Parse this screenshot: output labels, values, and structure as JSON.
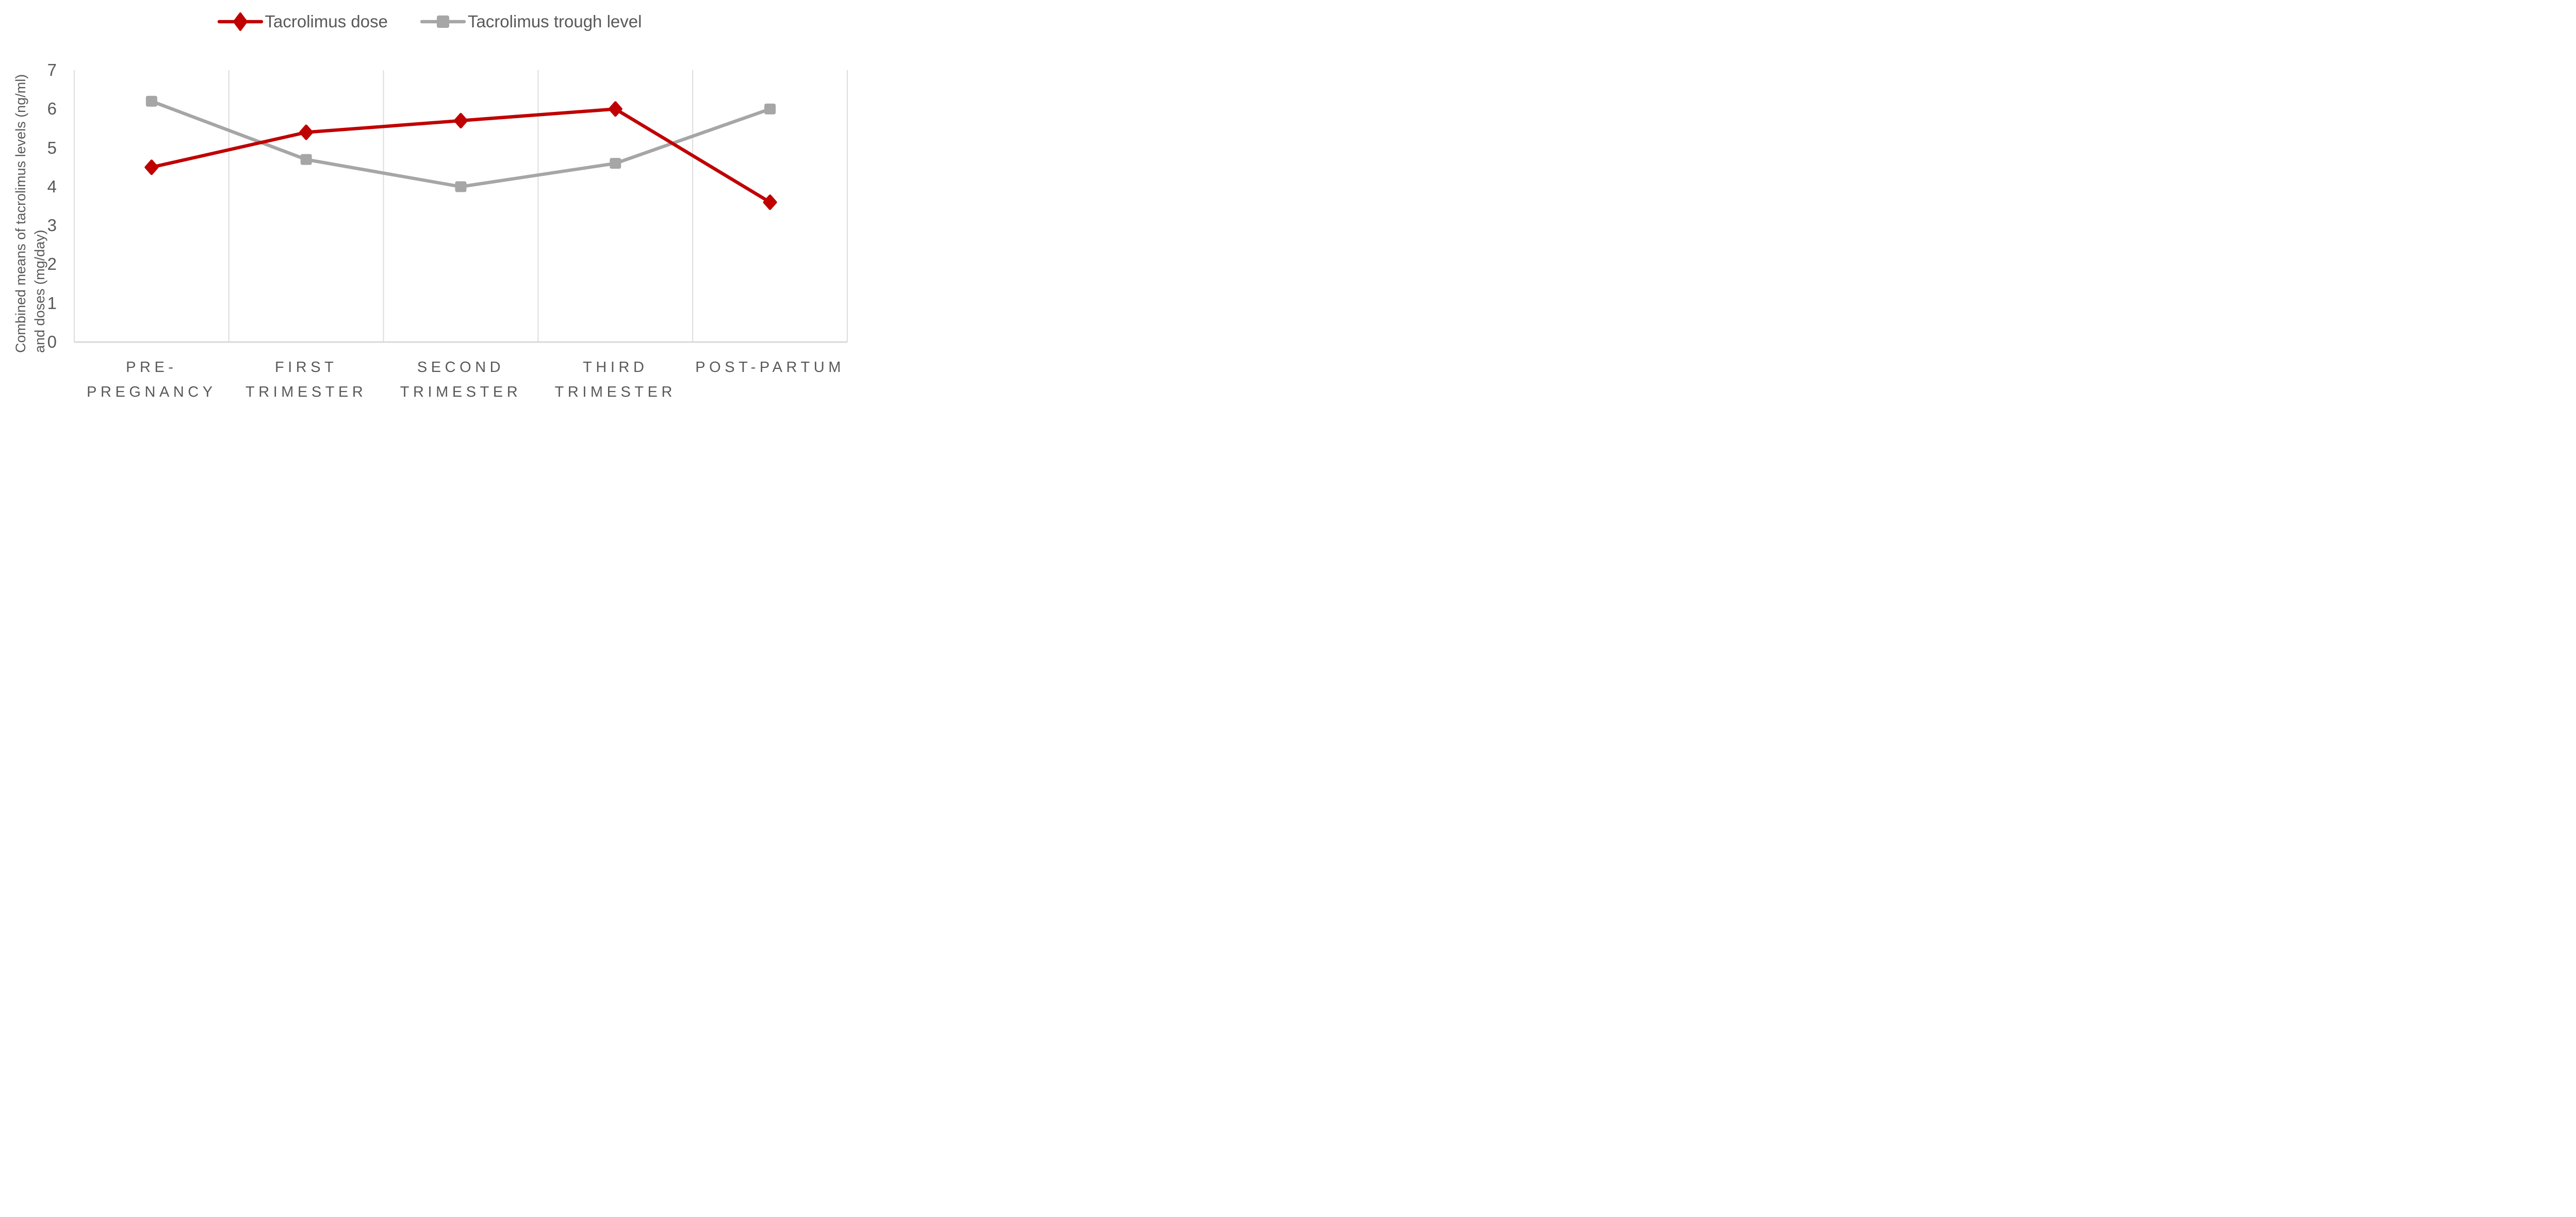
{
  "chart_data": {
    "type": "line",
    "categories": [
      "PRE-PREGNANCY",
      "FIRST TRIMESTER",
      "SECOND TRIMESTER",
      "THIRD TRIMESTER",
      "POST-PARTUM"
    ],
    "series": [
      {
        "name": "Tacrolimus dose",
        "color": "#C00000",
        "marker": "diamond",
        "values": [
          4.5,
          5.4,
          5.7,
          6.0,
          3.6
        ]
      },
      {
        "name": "Tacrolimus trough level",
        "color": "#A6A6A6",
        "marker": "square",
        "values": [
          6.2,
          4.7,
          4.0,
          4.6,
          6.0
        ]
      }
    ],
    "title": "",
    "xlabel": "",
    "ylabel": "Combined means of tacrolimus levels (ng/ml) and doses (mg/day)",
    "ylabel_line1": "Combined means of tacrolimus levels (ng/ml)",
    "ylabel_line2": "and doses (mg/day)",
    "ylim": [
      0,
      7
    ],
    "yticks": [
      0,
      1,
      2,
      3,
      4,
      5,
      6,
      7
    ],
    "grid": "vertical-only",
    "legend_position": "top",
    "colors": {
      "grid": "#D9D9D9",
      "axis_line": "#D9D9D9",
      "text": "#595959",
      "background": "#FFFFFF"
    }
  }
}
